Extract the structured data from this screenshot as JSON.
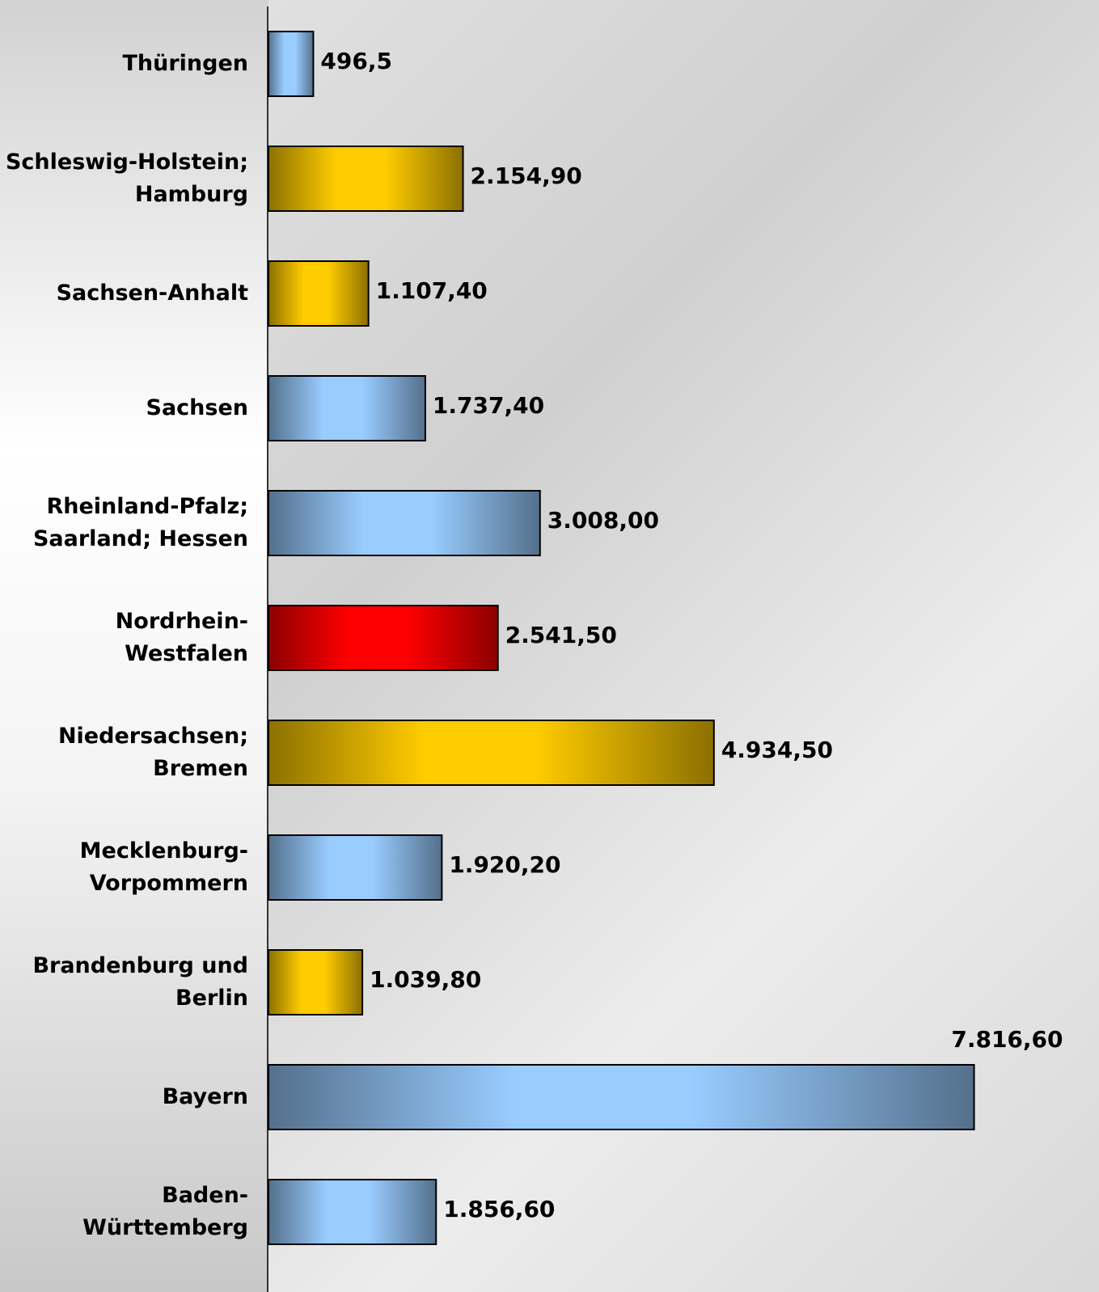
{
  "chart_data": {
    "type": "barh",
    "categories": [
      "Thüringen",
      "Schleswig-Holstein;\nHamburg",
      "Sachsen-Anhalt",
      "Sachsen",
      "Rheinland-Pfalz;\nSaarland; Hessen",
      "Nordrhein-Westfalen",
      "Niedersachsen;\nBremen",
      "Mecklenburg-\nVorpommern",
      "Brandenburg und\nBerlin",
      "Bayern",
      "Baden-Württemberg"
    ],
    "values": [
      496.5,
      2154.9,
      1107.4,
      1737.4,
      3008.0,
      2541.5,
      4934.5,
      1920.2,
      1039.8,
      7816.6,
      1856.6
    ],
    "value_labels": [
      "496,5",
      "2.154,90",
      "1.107,40",
      "1.737,40",
      "3.008,00",
      "2.541,50",
      "4.934,50",
      "1.920,20",
      "1.039,80",
      "7.816,60",
      "1.856,60"
    ],
    "colors": [
      "#99ccff",
      "#ffcc00",
      "#ffcc00",
      "#99ccff",
      "#99ccff",
      "#ff0000",
      "#ffcc00",
      "#99ccff",
      "#ffcc00",
      "#99ccff",
      "#99ccff"
    ],
    "xlim": [
      0,
      8000
    ]
  }
}
